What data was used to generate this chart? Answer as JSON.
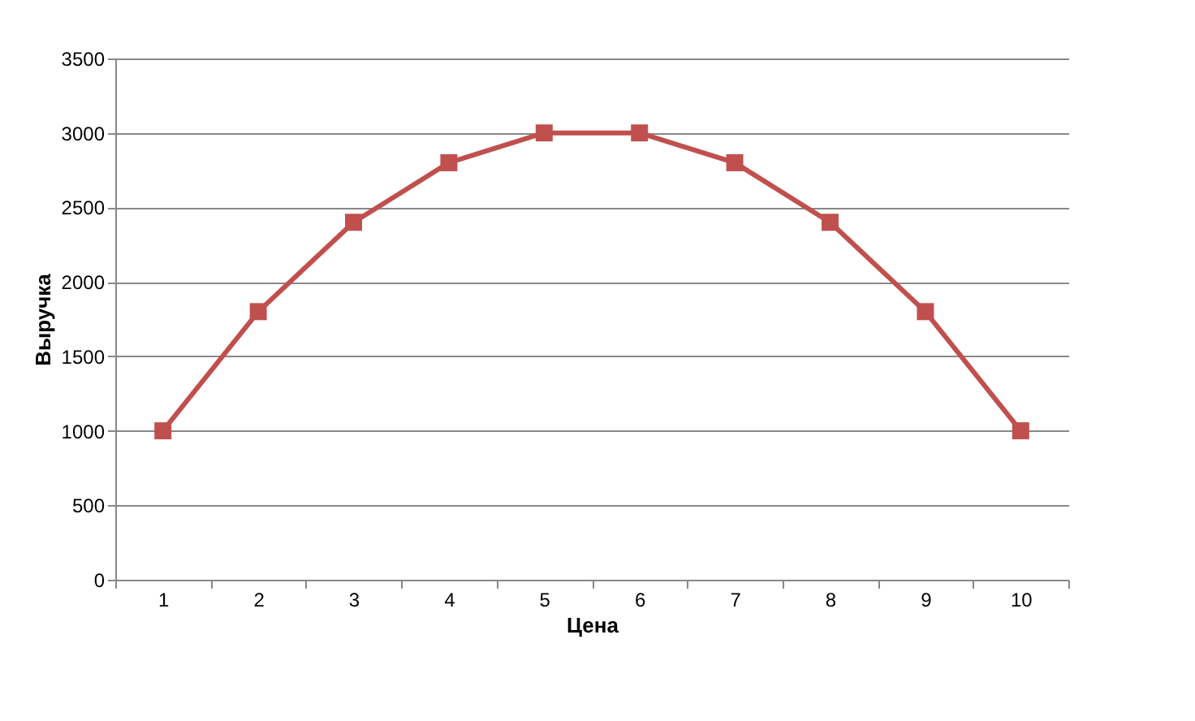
{
  "chart_data": {
    "type": "line",
    "xlabel": "Цена",
    "ylabel": "Выручка",
    "categories": [
      "1",
      "2",
      "3",
      "4",
      "5",
      "6",
      "7",
      "8",
      "9",
      "10"
    ],
    "series": [
      {
        "color": "#c0504d",
        "values": [
          1000,
          1800,
          2400,
          2800,
          3000,
          3000,
          2800,
          2400,
          1800,
          1000
        ]
      }
    ],
    "ylim": [
      0,
      3500
    ],
    "yticks": [
      0,
      500,
      1000,
      1500,
      2000,
      2500,
      3000,
      3500
    ],
    "grid": "y",
    "marker": "square",
    "line_style": "solid"
  }
}
